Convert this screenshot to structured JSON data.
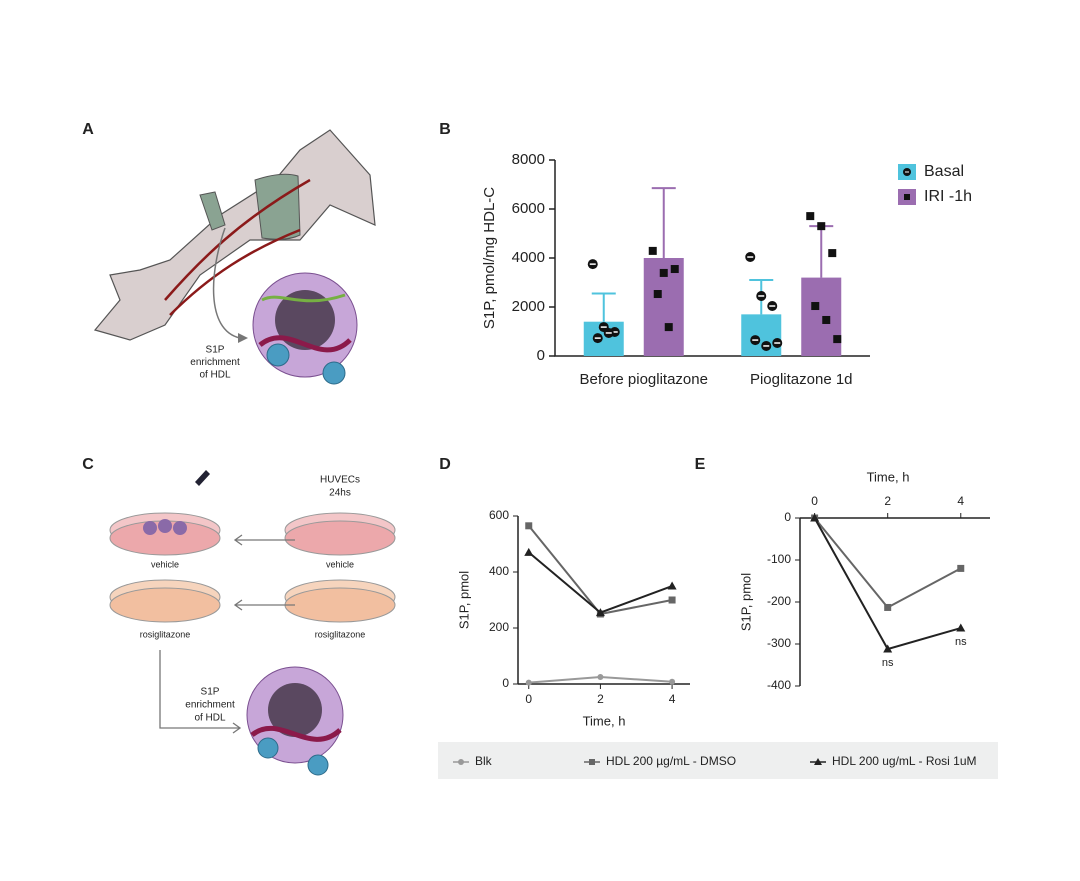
{
  "panels": [
    "A",
    "B",
    "C",
    "D",
    "E"
  ],
  "panel_a": {
    "caption": [
      "S1P",
      "enrichment",
      "of HDL"
    ]
  },
  "panel_c": {
    "cells": [
      "HUVECs",
      "24hs"
    ],
    "dish_labels": [
      "vehicle",
      "vehicle",
      "rosiglitazone",
      "rosiglitazone"
    ],
    "caption": [
      "S1P",
      "enrichment",
      "of HDL"
    ]
  },
  "chart_data": [
    {
      "type": "bar",
      "y_label": "S1P, pmol/mg HDL-C",
      "categories": [
        "Before pioglitazone",
        "Pioglitazone 1d"
      ],
      "series": [
        {
          "name": "Basal",
          "color": "#4fc3dd",
          "values": [
            1400,
            1700
          ],
          "errors": [
            1150,
            1400
          ],
          "points": [
            [
              3750,
              1180,
              980,
              730,
              940
            ],
            [
              4040,
              2450,
              2040,
              650,
              410,
              530
            ]
          ]
        },
        {
          "name": "IRI -1h",
          "color": "#9b6db0",
          "values": [
            4000,
            3200
          ],
          "errors": [
            2850,
            2100
          ],
          "points": [
            [
              4290,
              3390,
              3550,
              2530,
              1180
            ],
            [
              5710,
              5300,
              4200,
              2040,
              1470,
              690
            ]
          ]
        }
      ],
      "ylim": [
        0,
        8000
      ],
      "yticks": [
        0,
        2000,
        4000,
        6000,
        8000
      ]
    },
    {
      "type": "line",
      "x_label": "Time, h",
      "y_label": "S1P, pmol",
      "x": [
        0,
        2,
        4
      ],
      "series": [
        {
          "name": "Blk",
          "color": "#999999",
          "marker": "circle",
          "values": [
            5,
            25,
            8
          ]
        },
        {
          "name": "HDL 200 µg/mL - DMSO",
          "color": "#666666",
          "marker": "square",
          "values": [
            565,
            250,
            300
          ]
        },
        {
          "name": "HDL 200 ug/mL - Rosi 1uM",
          "color": "#222222",
          "marker": "triangle",
          "values": [
            470,
            255,
            350
          ]
        }
      ],
      "xlim": [
        -0.3,
        4.5
      ],
      "xticks": [
        0,
        2,
        4
      ],
      "ylim": [
        0,
        600
      ],
      "yticks": [
        0,
        200,
        400,
        600
      ],
      "legend": "bottom"
    },
    {
      "type": "line",
      "x_axis": "top",
      "x_label": "Time, h",
      "y_label": "S1P, pmol",
      "x": [
        0,
        2,
        4
      ],
      "series": [
        {
          "color": "#666666",
          "marker": "square",
          "values": [
            0,
            -213,
            -120
          ]
        },
        {
          "color": "#222222",
          "marker": "triangle",
          "values": [
            0,
            -312,
            -262
          ],
          "point_notes": [
            null,
            "ns",
            "ns"
          ]
        }
      ],
      "xlim": [
        -0.4,
        4.8
      ],
      "xticks": [
        0,
        2,
        4
      ],
      "ylim": [
        -400,
        0
      ],
      "yticks": [
        0,
        -100,
        -200,
        -300,
        -400
      ]
    }
  ]
}
